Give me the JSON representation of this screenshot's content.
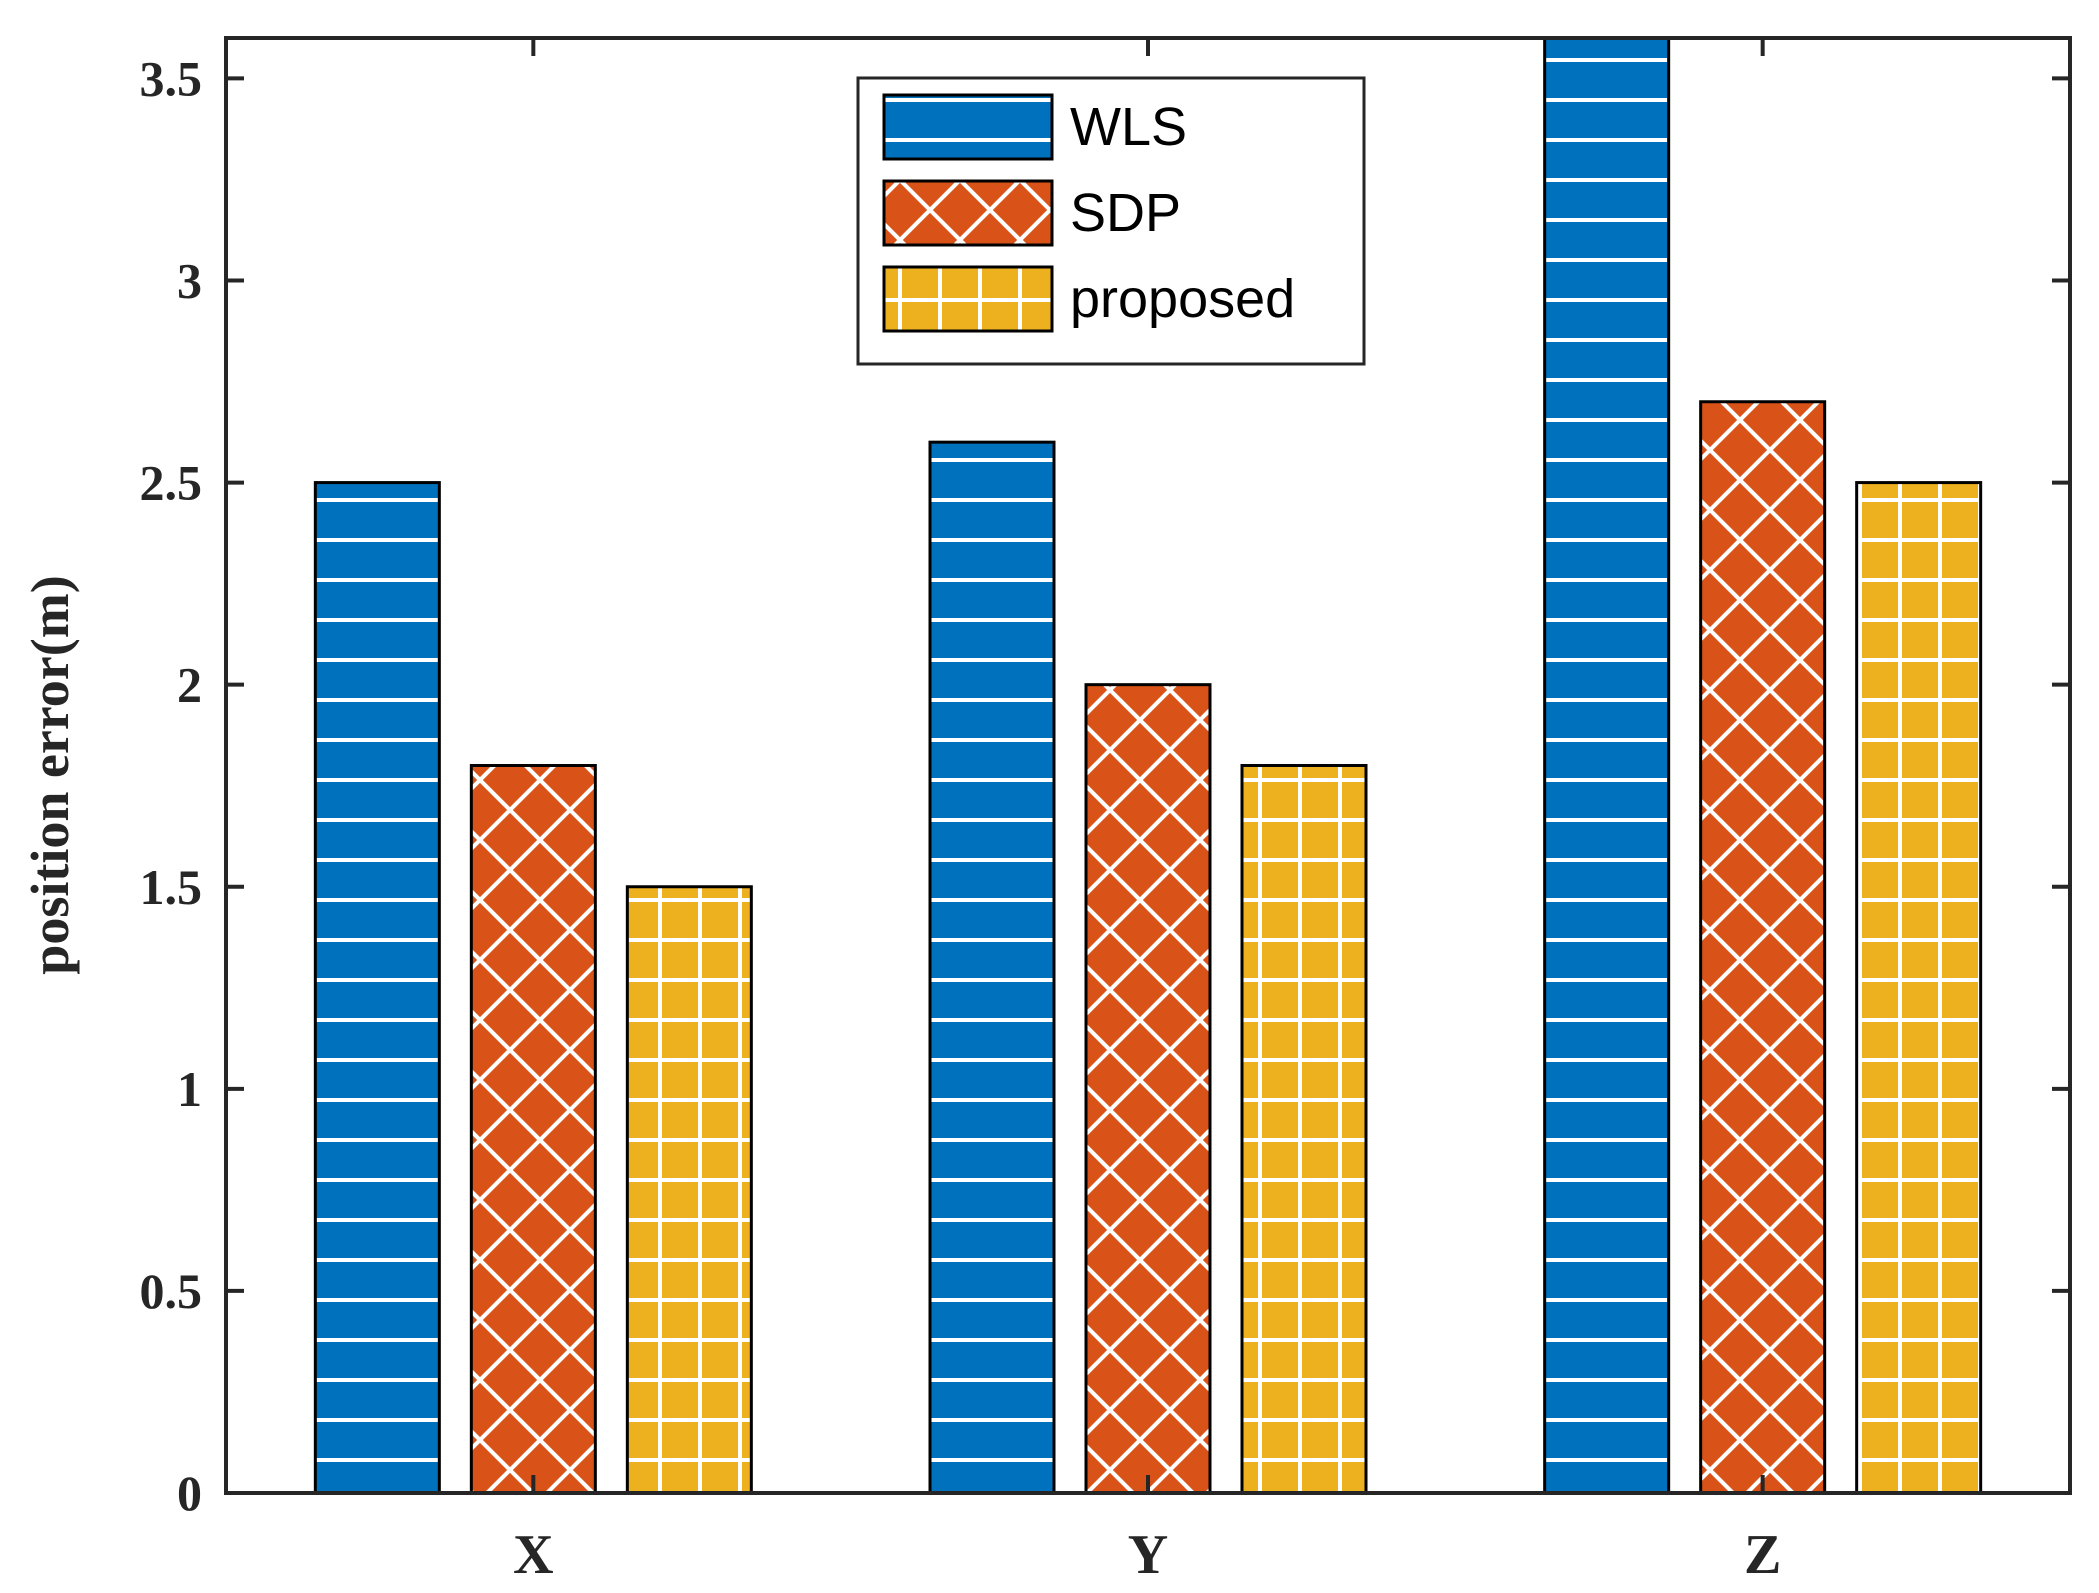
{
  "chart_data": {
    "type": "bar",
    "title": "",
    "xlabel": "",
    "ylabel": "position error(m)",
    "categories": [
      "X",
      "Y",
      "Z"
    ],
    "ylim": [
      0,
      3.6
    ],
    "yticks": [
      0,
      0.5,
      1,
      1.5,
      2,
      2.5,
      3,
      3.5
    ],
    "ytick_labels": [
      "0",
      "0.5",
      "1",
      "1.5",
      "2",
      "2.5",
      "3",
      "3.5"
    ],
    "grid": false,
    "legend_position": "top-center",
    "series": [
      {
        "name": "WLS",
        "values": [
          2.5,
          2.6,
          3.6
        ],
        "color": "#0072BD",
        "pattern": "horizontal-lines"
      },
      {
        "name": "SDP",
        "values": [
          1.8,
          2.0,
          2.7
        ],
        "color": "#D95319",
        "pattern": "crosshatch"
      },
      {
        "name": "proposed",
        "values": [
          1.5,
          1.8,
          2.5
        ],
        "color": "#EDB120",
        "pattern": "grid"
      }
    ]
  }
}
